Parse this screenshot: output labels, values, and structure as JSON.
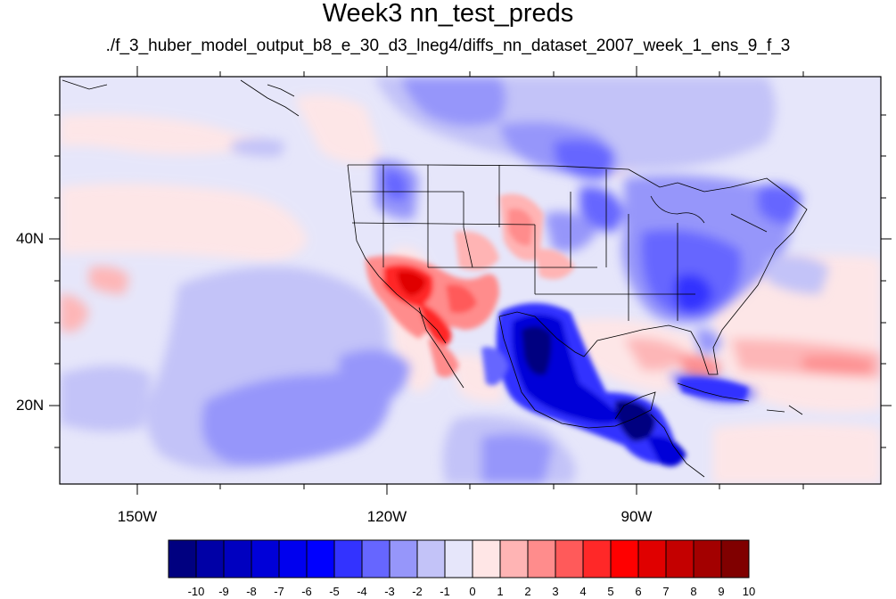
{
  "title": "Week3 nn_test_preds",
  "subtitle": "./f_3_huber_model_output_b8_e_30_d3_lneg4/diffs_nn_dataset_2007_week_1_ens_9_f_3",
  "lat_labels": [
    "40N",
    "20N"
  ],
  "lon_labels": [
    "150W",
    "120W",
    "90W"
  ],
  "colorbar": {
    "labels": [
      "-10",
      "-9",
      "-8",
      "-7",
      "-6",
      "-5",
      "-4",
      "-3",
      "-2",
      "-1",
      "0",
      "1",
      "2",
      "3",
      "4",
      "5",
      "6",
      "7",
      "8",
      "9",
      "10"
    ],
    "colors": [
      "#000080",
      "#0000a6",
      "#0000c0",
      "#0000d8",
      "#0000ee",
      "#0000ff",
      "#3333ff",
      "#6666ff",
      "#9696fa",
      "#c3c3f8",
      "#e6e6fa",
      "#ffe6e6",
      "#ffb4b4",
      "#ff8c8c",
      "#ff5a5a",
      "#ff2828",
      "#ff0000",
      "#e00000",
      "#c40000",
      "#a30000",
      "#800000"
    ]
  }
}
